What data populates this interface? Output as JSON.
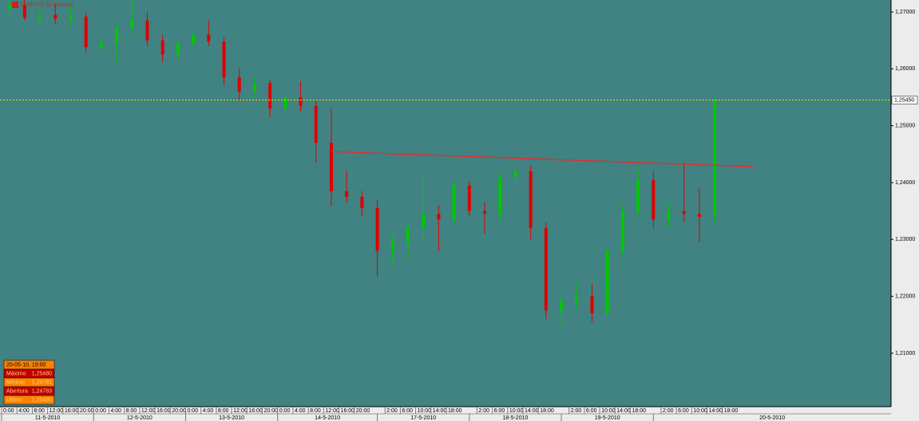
{
  "chart_data": {
    "type": "candlestick",
    "title": "EURUSD 60 Minutes",
    "up_color": "#00c800",
    "down_color": "#e00000",
    "x": [
      2,
      6,
      10,
      14,
      18,
      22,
      26,
      30,
      34,
      38,
      42,
      46,
      50,
      54,
      58,
      62,
      66,
      70,
      74,
      78,
      82,
      86,
      90,
      94,
      98,
      102,
      106,
      110,
      114,
      118,
      122,
      126,
      130,
      134,
      138,
      142,
      146,
      150,
      154,
      158,
      162,
      166,
      170,
      174,
      178,
      182,
      186
    ],
    "candles": [
      [
        1.2705,
        1.2721,
        1.269,
        1.2712
      ],
      [
        1.2712,
        1.2721,
        1.2685,
        1.269
      ],
      [
        1.269,
        1.2712,
        1.2672,
        1.2695
      ],
      [
        1.2695,
        1.2714,
        1.2678,
        1.2688
      ],
      [
        1.2688,
        1.2712,
        1.2676,
        1.2692
      ],
      [
        1.2692,
        1.2698,
        1.2628,
        1.2638
      ],
      [
        1.2638,
        1.266,
        1.2625,
        1.2645
      ],
      [
        1.2645,
        1.268,
        1.261,
        1.2672
      ],
      [
        1.2672,
        1.2721,
        1.266,
        1.2685
      ],
      [
        1.2685,
        1.27,
        1.264,
        1.265
      ],
      [
        1.265,
        1.266,
        1.2612,
        1.2625
      ],
      [
        1.2625,
        1.2652,
        1.2615,
        1.2645
      ],
      [
        1.2645,
        1.2668,
        1.2635,
        1.266
      ],
      [
        1.266,
        1.2685,
        1.264,
        1.2648
      ],
      [
        1.2648,
        1.2655,
        1.257,
        1.2585
      ],
      [
        1.2585,
        1.26,
        1.2545,
        1.256
      ],
      [
        1.256,
        1.2585,
        1.2548,
        1.2575
      ],
      [
        1.2575,
        1.258,
        1.2515,
        1.253
      ],
      [
        1.253,
        1.256,
        1.252,
        1.255
      ],
      [
        1.255,
        1.2578,
        1.2525,
        1.2535
      ],
      [
        1.2535,
        1.2545,
        1.2435,
        1.247
      ],
      [
        1.247,
        1.253,
        1.236,
        1.2385
      ],
      [
        1.2385,
        1.242,
        1.2365,
        1.2375
      ],
      [
        1.2375,
        1.2385,
        1.234,
        1.2355
      ],
      [
        1.2355,
        1.237,
        1.2235,
        1.228
      ],
      [
        1.228,
        1.231,
        1.2255,
        1.2295
      ],
      [
        1.2295,
        1.233,
        1.2265,
        1.232
      ],
      [
        1.232,
        1.241,
        1.23,
        1.2345
      ],
      [
        1.2345,
        1.236,
        1.228,
        1.2335
      ],
      [
        1.2335,
        1.2405,
        1.2325,
        1.2395
      ],
      [
        1.2395,
        1.2402,
        1.234,
        1.235
      ],
      [
        1.235,
        1.2365,
        1.231,
        1.2345
      ],
      [
        1.2345,
        1.242,
        1.233,
        1.241
      ],
      [
        1.241,
        1.2445,
        1.239,
        1.242
      ],
      [
        1.242,
        1.243,
        1.23,
        1.232
      ],
      [
        1.232,
        1.233,
        1.216,
        1.2175
      ],
      [
        1.2175,
        1.221,
        1.2145,
        1.219
      ],
      [
        1.219,
        1.2225,
        1.2175,
        1.22
      ],
      [
        1.22,
        1.2222,
        1.2155,
        1.217
      ],
      [
        1.217,
        1.229,
        1.2165,
        1.228
      ],
      [
        1.228,
        1.236,
        1.227,
        1.235
      ],
      [
        1.235,
        1.243,
        1.234,
        1.2405
      ],
      [
        1.2405,
        1.242,
        1.232,
        1.2335
      ],
      [
        1.2335,
        1.2365,
        1.232,
        1.235
      ],
      [
        1.235,
        1.2435,
        1.233,
        1.2345
      ],
      [
        1.2345,
        1.239,
        1.2295,
        1.234
      ],
      [
        1.234,
        1.2548,
        1.233,
        1.2545
      ]
    ],
    "xlim": [
      0,
      232
    ],
    "ylim": [
      1.2006,
      1.2721
    ],
    "yticks": [
      {
        "value": 1.27,
        "label": "1,27000"
      },
      {
        "value": 1.26,
        "label": "1,26000"
      },
      {
        "value": 1.25,
        "label": "1,25000"
      },
      {
        "value": 1.24,
        "label": "1,24000"
      },
      {
        "value": 1.23,
        "label": "1,23000"
      },
      {
        "value": 1.22,
        "label": "1,22000"
      },
      {
        "value": 1.21,
        "label": "1,21000"
      }
    ],
    "xticks": [
      {
        "value": 0,
        "label": "0:00"
      },
      {
        "value": 4,
        "label": "4:00"
      },
      {
        "value": 8,
        "label": "8:00"
      },
      {
        "value": 12,
        "label": "12:00"
      },
      {
        "value": 16,
        "label": "16:00"
      },
      {
        "value": 20,
        "label": "20:00"
      },
      {
        "value": 24,
        "label": "0:00"
      },
      {
        "value": 28,
        "label": "4:00"
      },
      {
        "value": 32,
        "label": "8:00"
      },
      {
        "value": 36,
        "label": "12:00"
      },
      {
        "value": 40,
        "label": "16:00"
      },
      {
        "value": 44,
        "label": "20:00"
      },
      {
        "value": 48,
        "label": "0:00"
      },
      {
        "value": 52,
        "label": "4:00"
      },
      {
        "value": 56,
        "label": "8:00"
      },
      {
        "value": 60,
        "label": "12:00"
      },
      {
        "value": 64,
        "label": "16:00"
      },
      {
        "value": 68,
        "label": "20:00"
      },
      {
        "value": 72,
        "label": "0:00"
      },
      {
        "value": 76,
        "label": "4:00"
      },
      {
        "value": 80,
        "label": "8:00"
      },
      {
        "value": 84,
        "label": "12:00"
      },
      {
        "value": 88,
        "label": "16:00"
      },
      {
        "value": 92,
        "label": "20:00"
      },
      {
        "value": 100,
        "label": "2:00"
      },
      {
        "value": 104,
        "label": "6:00"
      },
      {
        "value": 108,
        "label": "10:00"
      },
      {
        "value": 112,
        "label": "14:00"
      },
      {
        "value": 116,
        "label": "18:00"
      },
      {
        "value": 124,
        "label": "2:00"
      },
      {
        "value": 128,
        "label": "6:00"
      },
      {
        "value": 132,
        "label": "10:00"
      },
      {
        "value": 136,
        "label": "14:00"
      },
      {
        "value": 140,
        "label": "18:00"
      },
      {
        "value": 148,
        "label": "2:00"
      },
      {
        "value": 152,
        "label": "6:00"
      },
      {
        "value": 156,
        "label": "10:00"
      },
      {
        "value": 160,
        "label": "14:00"
      },
      {
        "value": 164,
        "label": "18:00"
      },
      {
        "value": 172,
        "label": "2:00"
      },
      {
        "value": 176,
        "label": "6:00"
      },
      {
        "value": 180,
        "label": "10:00"
      },
      {
        "value": 184,
        "label": "14:00"
      },
      {
        "value": 188,
        "label": "18:00"
      }
    ],
    "date_ticks": [
      {
        "value": 0,
        "label": "11-5-2010"
      },
      {
        "value": 24,
        "label": "12-5-2010"
      },
      {
        "value": 48,
        "label": "13-5-2010"
      },
      {
        "value": 72,
        "label": "14-5-2010"
      },
      {
        "value": 98,
        "label": "17-5-2010"
      },
      {
        "value": 122,
        "label": "18-5-2010"
      },
      {
        "value": 146,
        "label": "19-5-2010"
      },
      {
        "value": 170,
        "label": "20-5-2010"
      }
    ],
    "price_line": {
      "value": 1.2545,
      "label": "1,25450",
      "color": "#e8e800"
    },
    "trendline": {
      "x": [
        86,
        196
      ],
      "values": [
        1.24545,
        1.2428
      ],
      "color": "#e03030"
    },
    "info_box": [
      {
        "label": "20-05-10, 19:00",
        "value": null
      },
      {
        "label": "Máximo",
        "value": "1,25480"
      },
      {
        "label": "Mínimo",
        "value": "1,24781"
      },
      {
        "label": "Abertura",
        "value": "1,24783"
      },
      {
        "label": "Último",
        "value": "1,25480"
      }
    ]
  }
}
